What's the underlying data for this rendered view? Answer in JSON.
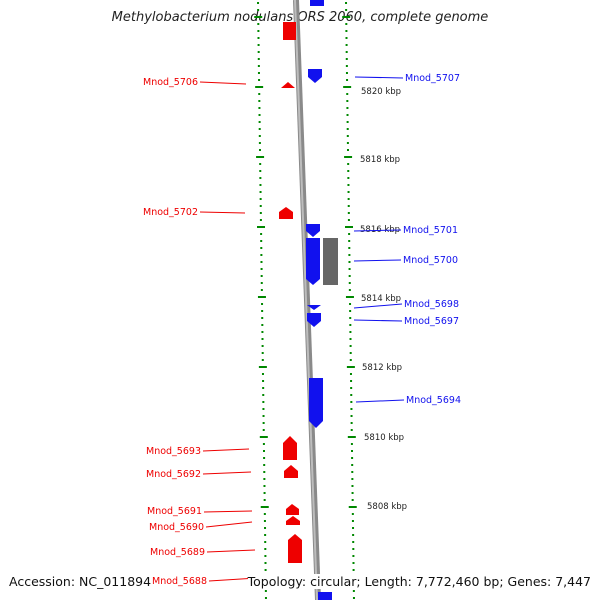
{
  "title": "Methylobacterium nodulans ORS 2060, complete genome",
  "footer": {
    "accession": "Accession: NC_011894",
    "summary": "Topology: circular; Length: 7,772,460 bp; Genes: 7,447"
  },
  "colors": {
    "forward": "#ee0000",
    "reverse": "#1111ee",
    "other": "#666666",
    "tick": "#008800",
    "backbone": "#8a8a8a"
  },
  "scale_labels": [
    {
      "text": "5820 kbp",
      "kbp": 5820
    },
    {
      "text": "5818 kbp",
      "kbp": 5818
    },
    {
      "text": "5816 kbp",
      "kbp": 5816
    },
    {
      "text": "5814 kbp",
      "kbp": 5814
    },
    {
      "text": "5812 kbp",
      "kbp": 5812
    },
    {
      "text": "5810 kbp",
      "kbp": 5810
    },
    {
      "text": "5808 kbp",
      "kbp": 5808
    }
  ],
  "genes_left": [
    {
      "label": "Mnod_5706"
    },
    {
      "label": "Mnod_5702"
    },
    {
      "label": "Mnod_5693"
    },
    {
      "label": "Mnod_5692"
    },
    {
      "label": "Mnod_5691"
    },
    {
      "label": "Mnod_5690"
    },
    {
      "label": "Mnod_5689"
    },
    {
      "label": "Mnod_5688"
    }
  ],
  "genes_right": [
    {
      "label": "Mnod_5707"
    },
    {
      "label": "Mnod_5701"
    },
    {
      "label": "Mnod_5700"
    },
    {
      "label": "Mnod_5698"
    },
    {
      "label": "Mnod_5697"
    },
    {
      "label": "Mnod_5694"
    }
  ]
}
